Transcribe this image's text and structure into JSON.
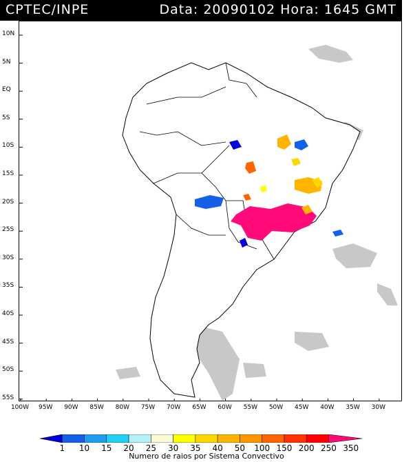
{
  "header": {
    "left_text": "CPTEC/INPE",
    "right_text": "Data: 20090102 Hora: 1645 GMT"
  },
  "map": {
    "lat_labels": [
      "10N",
      "5N",
      "EQ",
      "5S",
      "10S",
      "15S",
      "20S",
      "25S",
      "30S",
      "35S",
      "40S",
      "45S",
      "50S",
      "55S"
    ],
    "lon_labels": [
      "100W",
      "95W",
      "90W",
      "85W",
      "80W",
      "75W",
      "70W",
      "65W",
      "60W",
      "55W",
      "50W",
      "45W",
      "40W",
      "35W",
      "30W"
    ],
    "land_color": "#ffffff",
    "coast_color": "#000000",
    "cloud_color": "#c8c8c8"
  },
  "legend": {
    "title": "Numero de raios por Sistema Convectivo",
    "labels": [
      "1",
      "10",
      "15",
      "20",
      "25",
      "30",
      "35",
      "40",
      "50",
      "100",
      "150",
      "200",
      "250",
      "350"
    ],
    "colors": [
      "#0000d8",
      "#1460e8",
      "#1e9cf0",
      "#20d0f8",
      "#b4f0f8",
      "#fafad2",
      "#ffff00",
      "#ffd700",
      "#ffb400",
      "#ff9600",
      "#ff6400",
      "#ff3200",
      "#ff0000",
      "#ff0a78"
    ]
  }
}
